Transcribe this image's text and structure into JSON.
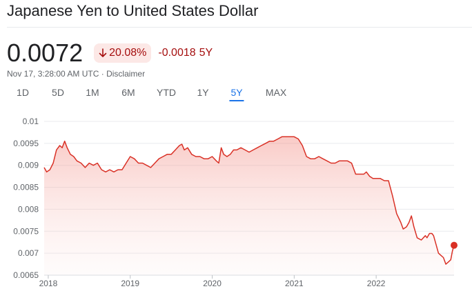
{
  "header": {
    "title": "Japanese Yen to United States Dollar"
  },
  "quote": {
    "price": "0.0072",
    "percent_change": "20.08%",
    "abs_change": "-0.0018",
    "period": "5Y",
    "timestamp": "Nov 17, 3:28:00 AM UTC",
    "separator": " · ",
    "disclaimer": "Disclaimer"
  },
  "tabs": [
    {
      "label": "1D",
      "active": false
    },
    {
      "label": "5D",
      "active": false
    },
    {
      "label": "1M",
      "active": false
    },
    {
      "label": "6M",
      "active": false
    },
    {
      "label": "YTD",
      "active": false
    },
    {
      "label": "1Y",
      "active": false
    },
    {
      "label": "5Y",
      "active": true
    },
    {
      "label": "MAX",
      "active": false
    }
  ],
  "colors": {
    "line": "#d93025",
    "negative_text": "#a50e0e",
    "negative_bg": "#fce8e6",
    "active_tab": "#1a73e8",
    "gridline": "#e8eaed"
  },
  "icons": {
    "change_direction": "arrow-down-icon"
  },
  "chart_data": {
    "type": "area",
    "y_ticks": [
      {
        "label": "0.01",
        "value": 0.01
      },
      {
        "label": "0.0095",
        "value": 0.0095
      },
      {
        "label": "0.009",
        "value": 0.009
      },
      {
        "label": "0.0085",
        "value": 0.0085
      },
      {
        "label": "0.008",
        "value": 0.008
      },
      {
        "label": "0.0075",
        "value": 0.0075
      },
      {
        "label": "0.007",
        "value": 0.007
      },
      {
        "label": "0.0065",
        "value": 0.0065
      }
    ],
    "x_ticks": [
      {
        "label": "2018",
        "value": 2018.0
      },
      {
        "label": "2019",
        "value": 2019.0
      },
      {
        "label": "2020",
        "value": 2020.0
      },
      {
        "label": "2021",
        "value": 2021.0
      },
      {
        "label": "2022",
        "value": 2022.0
      }
    ],
    "xlim": [
      2017.95,
      2022.95
    ],
    "ylim": [
      0.0065,
      0.01
    ],
    "grid": true,
    "series": [
      {
        "values": [
          [
            2017.95,
            0.00895
          ],
          [
            2017.98,
            0.00885
          ],
          [
            2018.02,
            0.0089
          ],
          [
            2018.06,
            0.00905
          ],
          [
            2018.1,
            0.00935
          ],
          [
            2018.14,
            0.00945
          ],
          [
            2018.17,
            0.0094
          ],
          [
            2018.2,
            0.00955
          ],
          [
            2018.23,
            0.0094
          ],
          [
            2018.27,
            0.00925
          ],
          [
            2018.31,
            0.0092
          ],
          [
            2018.35,
            0.0091
          ],
          [
            2018.4,
            0.00905
          ],
          [
            2018.45,
            0.00895
          ],
          [
            2018.5,
            0.00905
          ],
          [
            2018.55,
            0.009
          ],
          [
            2018.6,
            0.00905
          ],
          [
            2018.65,
            0.0089
          ],
          [
            2018.7,
            0.00885
          ],
          [
            2018.75,
            0.0089
          ],
          [
            2018.8,
            0.00885
          ],
          [
            2018.85,
            0.0089
          ],
          [
            2018.9,
            0.0089
          ],
          [
            2018.95,
            0.00905
          ],
          [
            2019.0,
            0.0092
          ],
          [
            2019.05,
            0.00915
          ],
          [
            2019.1,
            0.00905
          ],
          [
            2019.15,
            0.00905
          ],
          [
            2019.2,
            0.009
          ],
          [
            2019.25,
            0.00895
          ],
          [
            2019.3,
            0.00905
          ],
          [
            2019.35,
            0.00915
          ],
          [
            2019.4,
            0.0092
          ],
          [
            2019.45,
            0.00925
          ],
          [
            2019.5,
            0.00925
          ],
          [
            2019.55,
            0.00935
          ],
          [
            2019.6,
            0.00945
          ],
          [
            2019.63,
            0.00948
          ],
          [
            2019.66,
            0.00935
          ],
          [
            2019.7,
            0.0094
          ],
          [
            2019.75,
            0.00925
          ],
          [
            2019.8,
            0.0092
          ],
          [
            2019.85,
            0.0092
          ],
          [
            2019.9,
            0.00915
          ],
          [
            2019.95,
            0.00915
          ],
          [
            2020.0,
            0.0092
          ],
          [
            2020.05,
            0.0091
          ],
          [
            2020.08,
            0.00905
          ],
          [
            2020.11,
            0.0094
          ],
          [
            2020.14,
            0.00925
          ],
          [
            2020.18,
            0.0092
          ],
          [
            2020.22,
            0.00925
          ],
          [
            2020.26,
            0.00935
          ],
          [
            2020.3,
            0.00935
          ],
          [
            2020.35,
            0.0094
          ],
          [
            2020.4,
            0.00935
          ],
          [
            2020.45,
            0.0093
          ],
          [
            2020.5,
            0.00935
          ],
          [
            2020.55,
            0.0094
          ],
          [
            2020.6,
            0.00945
          ],
          [
            2020.65,
            0.0095
          ],
          [
            2020.7,
            0.00955
          ],
          [
            2020.75,
            0.00955
          ],
          [
            2020.8,
            0.0096
          ],
          [
            2020.85,
            0.00965
          ],
          [
            2020.9,
            0.00965
          ],
          [
            2020.95,
            0.00965
          ],
          [
            2021.0,
            0.00965
          ],
          [
            2021.05,
            0.0096
          ],
          [
            2021.1,
            0.00945
          ],
          [
            2021.15,
            0.0092
          ],
          [
            2021.2,
            0.00915
          ],
          [
            2021.25,
            0.00915
          ],
          [
            2021.3,
            0.0092
          ],
          [
            2021.35,
            0.00915
          ],
          [
            2021.4,
            0.0091
          ],
          [
            2021.45,
            0.00905
          ],
          [
            2021.5,
            0.00905
          ],
          [
            2021.55,
            0.0091
          ],
          [
            2021.6,
            0.0091
          ],
          [
            2021.65,
            0.0091
          ],
          [
            2021.7,
            0.00905
          ],
          [
            2021.75,
            0.0088
          ],
          [
            2021.8,
            0.0088
          ],
          [
            2021.85,
            0.0088
          ],
          [
            2021.88,
            0.00885
          ],
          [
            2021.92,
            0.00875
          ],
          [
            2021.96,
            0.0087
          ],
          [
            2022.0,
            0.0087
          ],
          [
            2022.05,
            0.0087
          ],
          [
            2022.1,
            0.00865
          ],
          [
            2022.15,
            0.00865
          ],
          [
            2022.2,
            0.0083
          ],
          [
            2022.25,
            0.0079
          ],
          [
            2022.3,
            0.0077
          ],
          [
            2022.33,
            0.00755
          ],
          [
            2022.37,
            0.0076
          ],
          [
            2022.4,
            0.0077
          ],
          [
            2022.43,
            0.00785
          ],
          [
            2022.46,
            0.0076
          ],
          [
            2022.5,
            0.00735
          ],
          [
            2022.55,
            0.0073
          ],
          [
            2022.6,
            0.0074
          ],
          [
            2022.62,
            0.00735
          ],
          [
            2022.65,
            0.00745
          ],
          [
            2022.68,
            0.00745
          ],
          [
            2022.7,
            0.0074
          ],
          [
            2022.73,
            0.0072
          ],
          [
            2022.76,
            0.007
          ],
          [
            2022.79,
            0.00695
          ],
          [
            2022.82,
            0.0069
          ],
          [
            2022.85,
            0.00675
          ],
          [
            2022.88,
            0.0068
          ],
          [
            2022.91,
            0.00685
          ],
          [
            2022.93,
            0.00705
          ],
          [
            2022.95,
            0.00718
          ]
        ]
      }
    ]
  }
}
